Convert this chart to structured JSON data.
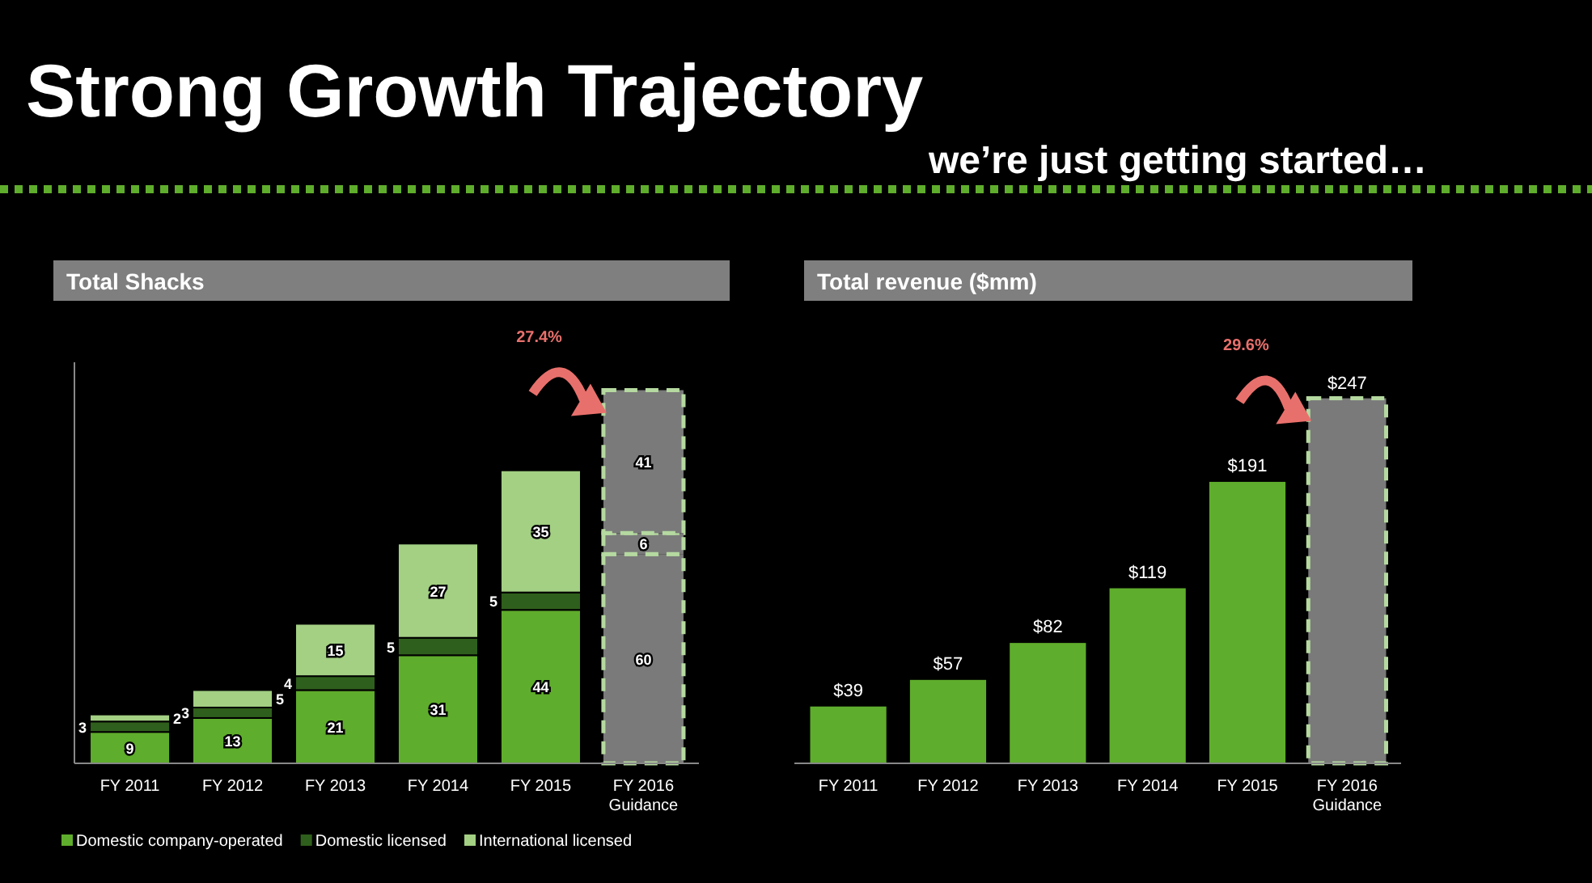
{
  "chart_data": [
    {
      "type": "bar",
      "title": "Total Shacks",
      "stacked": true,
      "data_labels": true,
      "legend": "bottom",
      "ylim": [
        0,
        115
      ],
      "annotations": [
        "Strong Growth Trajectory",
        "we’re just getting started…",
        "27.4%"
      ],
      "categories": [
        "FY 2011",
        "FY 2012",
        "FY 2013",
        "FY 2014",
        "FY 2015",
        "FY 2016 Guidance"
      ],
      "series": [
        {
          "name": "Domestic company-operated",
          "color": "#5fad2c",
          "colors": [
            "#5fad2c",
            "#5fad2c",
            "#5fad2c",
            "#5fad2c",
            "#5fad2c",
            "#7a7a7a"
          ],
          "values": [
            9,
            13,
            21,
            31,
            44,
            60
          ]
        },
        {
          "name": "Domestic licensed",
          "color": "#2f5f1c",
          "colors": [
            "#2f5f1c",
            "#2f5f1c",
            "#2f5f1c",
            "#2f5f1c",
            "#2f5f1c",
            "#7a7a7a"
          ],
          "values": [
            3,
            3,
            4,
            5,
            5,
            6
          ]
        },
        {
          "name": "International licensed",
          "color": "#a3d083",
          "colors": [
            "#a3d083",
            "#a3d083",
            "#a3d083",
            "#a3d083",
            "#a3d083",
            "#7a7a7a"
          ],
          "values": [
            2,
            5,
            15,
            27,
            35,
            41
          ]
        }
      ]
    },
    {
      "type": "bar",
      "title": "Total revenue ($mm)",
      "annotations": [
        "29.6%"
      ],
      "categories": [
        "FY 2011",
        "FY 2012",
        "FY 2013",
        "FY 2014",
        "FY 2015",
        "FY 2016 Guidance"
      ],
      "values": [
        39,
        57,
        82,
        119,
        191,
        247
      ],
      "value_labels": [
        "$39",
        "$57",
        "$82",
        "$119",
        "$191",
        "$247"
      ],
      "colors": [
        "#5fad2c",
        "#5fad2c",
        "#5fad2c",
        "#5fad2c",
        "#5fad2c",
        "#7a7a7a"
      ]
    }
  ]
}
